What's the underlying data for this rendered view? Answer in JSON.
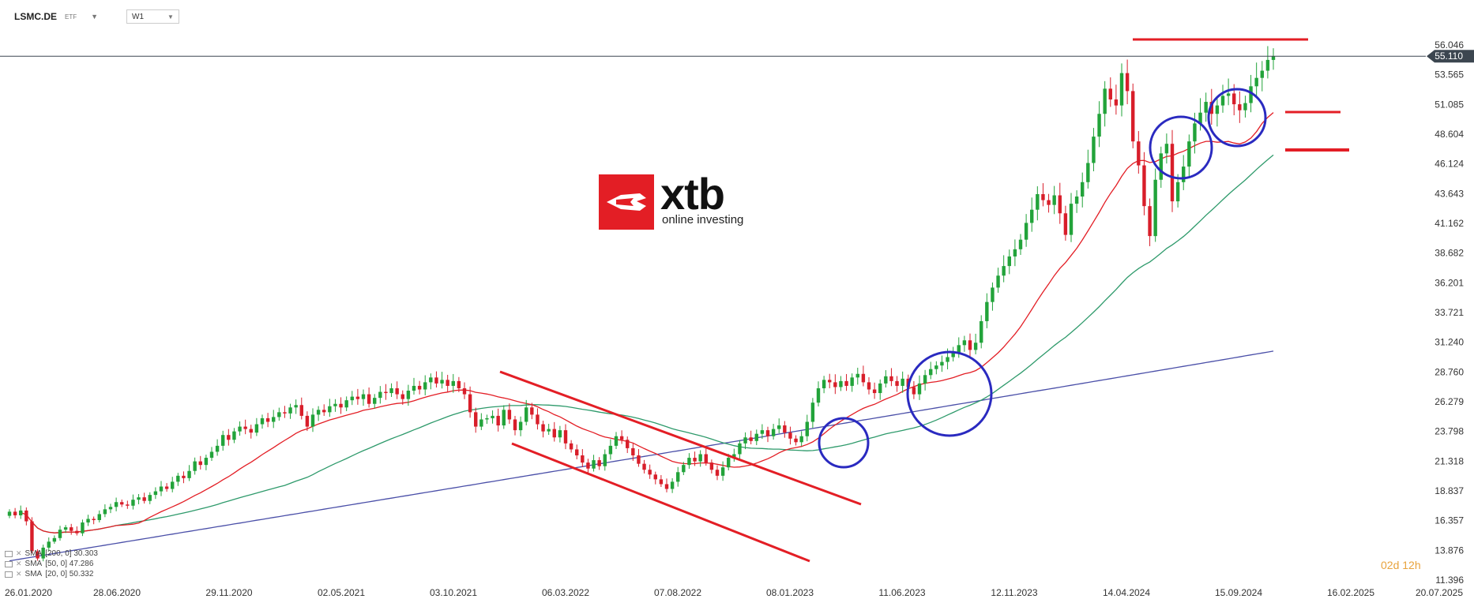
{
  "header": {
    "symbol": "LSMC.DE",
    "asset_type": "ETF",
    "timeframe": "W1"
  },
  "logo": {
    "word": "xtb",
    "tagline": "online investing",
    "color": "#e31e25"
  },
  "price_tag": {
    "value": "55.110",
    "bg": "#3c4650"
  },
  "legend": [
    {
      "label": "SMA",
      "params": "[200, 0] 30.303",
      "color": "#4a4fa8"
    },
    {
      "label": "SMA",
      "params": "[50, 0] 47.286",
      "color": "#2e9a6b"
    },
    {
      "label": "SMA",
      "params": "[20, 0] 50.332",
      "color": "#e31e25"
    }
  ],
  "countdown": "02d 12h",
  "colors": {
    "up": "#22a33a",
    "down": "#d81e2a",
    "sma200": "#4a4fa8",
    "sma50": "#2e9a6b",
    "sma20": "#e31e25",
    "annotation": "#e31e25",
    "circles": "#2a2ac0",
    "grid_text": "#333333"
  },
  "chart_data": {
    "type": "candlestick",
    "timeframe": "W1",
    "y_ticks": [
      "56.046",
      "53.565",
      "51.085",
      "48.604",
      "46.124",
      "43.643",
      "41.162",
      "38.682",
      "36.201",
      "33.721",
      "31.240",
      "28.760",
      "26.279",
      "23.798",
      "21.318",
      "18.837",
      "16.357",
      "13.876",
      "11.396"
    ],
    "x_ticks": [
      "26.01.2020",
      "28.06.2020",
      "29.11.2020",
      "02.05.2021",
      "03.10.2021",
      "06.03.2022",
      "07.08.2022",
      "08.01.2023",
      "11.06.2023",
      "12.11.2023",
      "14.04.2024",
      "15.09.2024",
      "16.02.2025",
      "20.07.2025"
    ],
    "ylim": [
      11.396,
      56.046
    ],
    "last_price": 55.11,
    "closes": [
      17.1,
      16.8,
      17.2,
      16.3,
      13.8,
      13.2,
      14.1,
      14.6,
      14.9,
      15.6,
      15.8,
      15.5,
      15.3,
      16.2,
      16.5,
      16.4,
      16.9,
      17.3,
      17.5,
      17.9,
      17.7,
      17.6,
      18.1,
      18.3,
      18.0,
      18.5,
      18.8,
      19.2,
      19.0,
      19.6,
      20.1,
      19.9,
      20.5,
      21.3,
      21.0,
      21.6,
      22.1,
      22.6,
      23.5,
      23.1,
      23.8,
      24.2,
      24.0,
      23.7,
      24.4,
      24.9,
      24.6,
      25.0,
      25.4,
      25.3,
      25.8,
      26.0,
      25.1,
      24.2,
      25.2,
      25.6,
      25.4,
      25.9,
      26.1,
      25.8,
      26.4,
      26.7,
      26.5,
      26.9,
      26.1,
      26.6,
      27.1,
      27.0,
      27.4,
      26.9,
      26.5,
      27.2,
      27.6,
      27.3,
      27.9,
      28.3,
      27.8,
      28.1,
      27.6,
      28.0,
      27.4,
      26.9,
      25.4,
      24.2,
      24.8,
      24.9,
      25.1,
      24.3,
      25.6,
      24.8,
      23.9,
      24.6,
      25.8,
      25.2,
      24.4,
      23.8,
      24.0,
      23.3,
      23.9,
      22.8,
      22.3,
      21.8,
      21.2,
      20.7,
      21.4,
      20.9,
      21.9,
      22.6,
      23.4,
      23.1,
      22.4,
      21.8,
      21.1,
      20.6,
      20.2,
      19.8,
      19.4,
      19.0,
      19.6,
      20.4,
      21.0,
      21.6,
      21.3,
      21.9,
      21.2,
      20.6,
      20.1,
      20.8,
      21.6,
      21.9,
      22.8,
      23.3,
      23.0,
      23.6,
      23.9,
      23.4,
      24.0,
      24.3,
      23.7,
      23.2,
      22.9,
      23.4,
      24.6,
      26.2,
      27.4,
      28.1,
      27.9,
      27.5,
      28.0,
      27.6,
      28.3,
      28.6,
      27.9,
      27.3,
      27.0,
      27.8,
      28.4,
      28.0,
      27.6,
      28.2,
      27.5,
      26.9,
      27.8,
      28.5,
      29.0,
      29.3,
      29.6,
      30.0,
      30.4,
      31.0,
      31.4,
      30.6,
      31.2,
      33.0,
      34.6,
      35.8,
      36.8,
      37.6,
      38.4,
      39.0,
      39.8,
      41.2,
      42.3,
      43.6,
      43.1,
      42.7,
      43.5,
      42.0,
      40.2,
      42.8,
      43.4,
      44.6,
      46.2,
      48.4,
      50.3,
      52.4,
      51.5,
      51.0,
      53.7,
      52.2,
      48.0,
      46.0,
      42.6,
      40.1,
      44.8,
      47.0,
      47.8,
      43.0,
      44.6,
      45.9,
      48.0,
      49.5,
      50.4,
      51.3,
      50.3,
      51.0,
      51.8,
      52.0,
      51.1,
      50.6,
      51.2,
      52.6,
      53.3,
      53.9,
      54.8,
      55.11
    ]
  }
}
